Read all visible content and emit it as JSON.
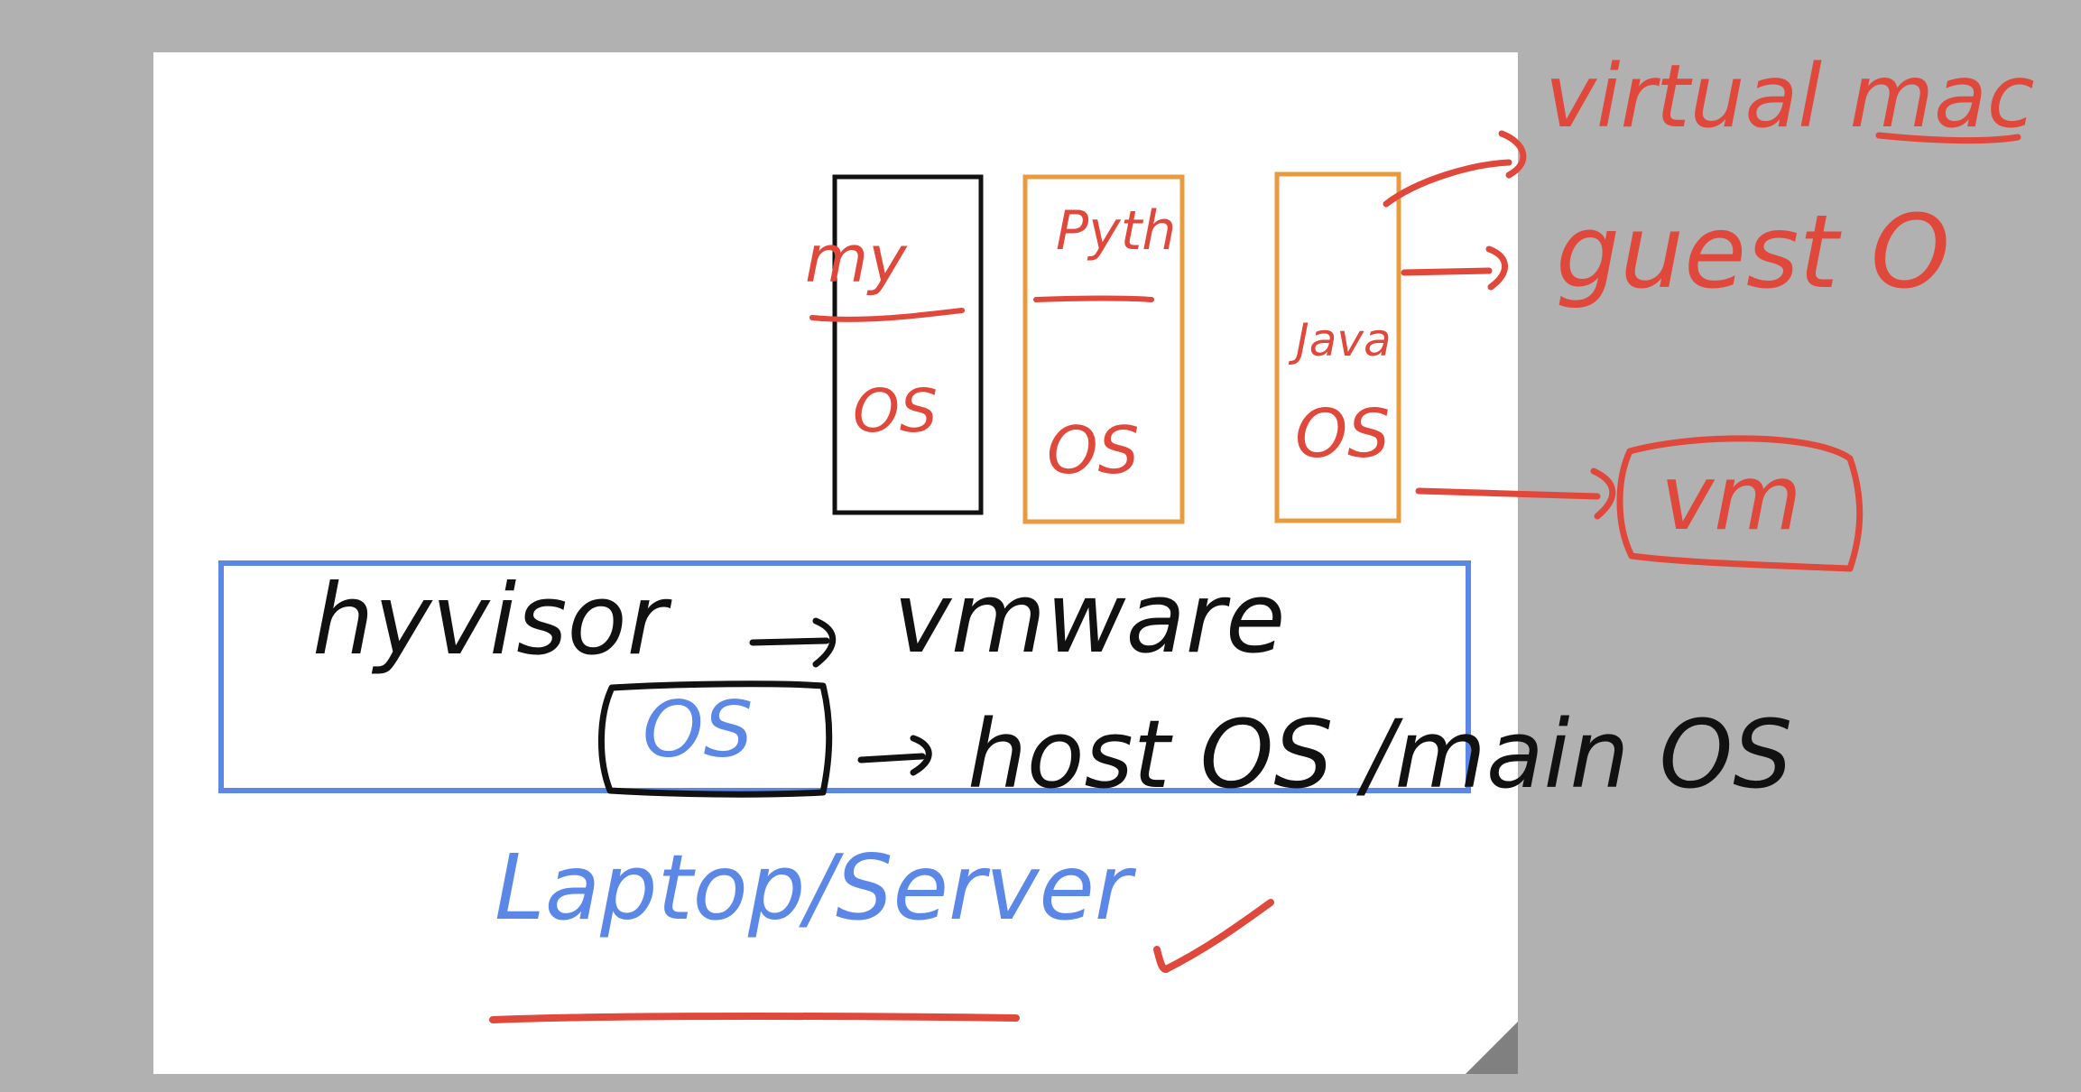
{
  "colors": {
    "background": "#b1b1b1",
    "canvas": "#ffffff",
    "ink_black": "#111111",
    "ink_red": "#e0483c",
    "ink_orange": "#ea9a3e",
    "ink_blue": "#5b87e6",
    "page_curl": "#808080"
  },
  "diagram": {
    "vm_boxes": [
      {
        "app": "my",
        "os": "OS"
      },
      {
        "app": "Pyth",
        "os": "OS"
      },
      {
        "app": "Java",
        "os": "OS"
      }
    ],
    "hypervisor": {
      "label": "hyvisor",
      "product": "vmware"
    },
    "host": {
      "os_label": "OS",
      "description": "host OS /main OS"
    },
    "hardware": {
      "label": "Laptop/Server"
    },
    "callouts": {
      "virtual_machine": "virtual mac",
      "guest_os": "guest O",
      "vm": "vm"
    },
    "marks": {
      "check": "checkmark"
    }
  }
}
